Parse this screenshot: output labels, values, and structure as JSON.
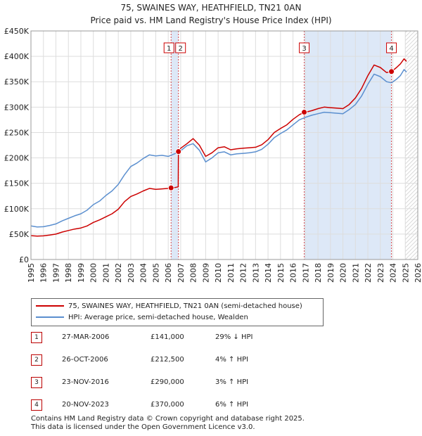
{
  "title": {
    "line1": "75, SWAINES WAY, HEATHFIELD, TN21 0AN",
    "line2": "Price paid vs. HM Land Registry's House Price Index (HPI)"
  },
  "legend": {
    "property": "75, SWAINES WAY, HEATHFIELD, TN21 0AN (semi-detached house)",
    "hpi": "HPI: Average price, semi-detached house, Wealden"
  },
  "colors": {
    "property": "#cc0000",
    "hpi": "#5b8fcf",
    "shade": "#dde8f7",
    "grid": "#dddddd",
    "marker_border": "#cc0000"
  },
  "sales": [
    {
      "num": "1",
      "date": "27-MAR-2006",
      "price": "£141,000",
      "hpi": "29% ↓ HPI"
    },
    {
      "num": "2",
      "date": "26-OCT-2006",
      "price": "£212,500",
      "hpi": "4% ↑ HPI"
    },
    {
      "num": "3",
      "date": "23-NOV-2016",
      "price": "£290,000",
      "hpi": "3% ↑ HPI"
    },
    {
      "num": "4",
      "date": "20-NOV-2023",
      "price": "£370,000",
      "hpi": "6% ↑ HPI"
    }
  ],
  "footer": {
    "line1": "Contains HM Land Registry data © Crown copyright and database right 2025.",
    "line2": "This data is licensed under the Open Government Licence v3.0."
  },
  "chart_data": {
    "type": "line",
    "title": "75, SWAINES WAY, HEATHFIELD, TN21 0AN — Price paid vs. HM Land Registry's House Price Index (HPI)",
    "xlabel": "",
    "ylabel": "",
    "xlim": [
      1995,
      2026
    ],
    "ylim": [
      0,
      450000
    ],
    "x_ticks": [
      "1995",
      "1996",
      "1997",
      "1998",
      "1999",
      "2000",
      "2001",
      "2002",
      "2003",
      "2004",
      "2005",
      "2006",
      "2007",
      "2008",
      "2009",
      "2010",
      "2011",
      "2012",
      "2013",
      "2014",
      "2015",
      "2016",
      "2017",
      "2018",
      "2019",
      "2020",
      "2021",
      "2022",
      "2023",
      "2024",
      "2025",
      "2026"
    ],
    "y_ticks": [
      {
        "value": 0,
        "label": "£0"
      },
      {
        "value": 50000,
        "label": "£50K"
      },
      {
        "value": 100000,
        "label": "£100K"
      },
      {
        "value": 150000,
        "label": "£150K"
      },
      {
        "value": 200000,
        "label": "£200K"
      },
      {
        "value": 250000,
        "label": "£250K"
      },
      {
        "value": 300000,
        "label": "£300K"
      },
      {
        "value": 350000,
        "label": "£350K"
      },
      {
        "value": 400000,
        "label": "£400K"
      },
      {
        "value": 450000,
        "label": "£450K"
      }
    ],
    "grid": true,
    "shaded_ranges": [
      [
        2006.23,
        2006.82
      ],
      [
        2016.9,
        2023.89
      ]
    ],
    "hatched_from": 2025.0,
    "series": [
      {
        "name": "HPI: Average price, semi-detached house, Wealden",
        "color": "#5b8fcf",
        "points": [
          [
            1995.0,
            66000
          ],
          [
            1995.5,
            64000
          ],
          [
            1996.0,
            64500
          ],
          [
            1996.5,
            67000
          ],
          [
            1997.0,
            70000
          ],
          [
            1997.5,
            76000
          ],
          [
            1998.0,
            81000
          ],
          [
            1998.5,
            86000
          ],
          [
            1999.0,
            90000
          ],
          [
            1999.5,
            97000
          ],
          [
            2000.0,
            108000
          ],
          [
            2000.5,
            115000
          ],
          [
            2001.0,
            126000
          ],
          [
            2001.5,
            135000
          ],
          [
            2002.0,
            148000
          ],
          [
            2002.5,
            167000
          ],
          [
            2003.0,
            183000
          ],
          [
            2003.5,
            190000
          ],
          [
            2004.0,
            199000
          ],
          [
            2004.5,
            206000
          ],
          [
            2005.0,
            204000
          ],
          [
            2005.5,
            205000
          ],
          [
            2006.0,
            203000
          ],
          [
            2006.5,
            208000
          ],
          [
            2007.0,
            214000
          ],
          [
            2007.5,
            224000
          ],
          [
            2008.0,
            228000
          ],
          [
            2008.5,
            215000
          ],
          [
            2009.0,
            192000
          ],
          [
            2009.5,
            200000
          ],
          [
            2010.0,
            210000
          ],
          [
            2010.5,
            212000
          ],
          [
            2011.0,
            206000
          ],
          [
            2011.5,
            208000
          ],
          [
            2012.0,
            209000
          ],
          [
            2012.5,
            210000
          ],
          [
            2013.0,
            212000
          ],
          [
            2013.5,
            217000
          ],
          [
            2014.0,
            227000
          ],
          [
            2014.5,
            240000
          ],
          [
            2015.0,
            248000
          ],
          [
            2015.5,
            255000
          ],
          [
            2016.0,
            265000
          ],
          [
            2016.5,
            275000
          ],
          [
            2017.0,
            280000
          ],
          [
            2017.5,
            284000
          ],
          [
            2018.0,
            287000
          ],
          [
            2018.5,
            290000
          ],
          [
            2019.0,
            289000
          ],
          [
            2019.5,
            288000
          ],
          [
            2020.0,
            287000
          ],
          [
            2020.5,
            295000
          ],
          [
            2021.0,
            305000
          ],
          [
            2021.5,
            322000
          ],
          [
            2022.0,
            345000
          ],
          [
            2022.5,
            365000
          ],
          [
            2023.0,
            360000
          ],
          [
            2023.5,
            350000
          ],
          [
            2023.9,
            348000
          ],
          [
            2024.3,
            355000
          ],
          [
            2024.6,
            362000
          ],
          [
            2024.9,
            374000
          ],
          [
            2025.1,
            369000
          ]
        ]
      },
      {
        "name": "75, SWAINES WAY, HEATHFIELD, TN21 0AN (semi-detached house)",
        "color": "#cc0000",
        "points": [
          [
            1995.0,
            47000
          ],
          [
            1995.5,
            46000
          ],
          [
            1996.0,
            46500
          ],
          [
            1996.5,
            48000
          ],
          [
            1997.0,
            50000
          ],
          [
            1997.5,
            54000
          ],
          [
            1998.0,
            57000
          ],
          [
            1998.5,
            60000
          ],
          [
            1999.0,
            62000
          ],
          [
            1999.5,
            66000
          ],
          [
            2000.0,
            73000
          ],
          [
            2000.5,
            78000
          ],
          [
            2001.0,
            84000
          ],
          [
            2001.5,
            90000
          ],
          [
            2002.0,
            99000
          ],
          [
            2002.5,
            114000
          ],
          [
            2003.0,
            124000
          ],
          [
            2003.5,
            129000
          ],
          [
            2004.0,
            135000
          ],
          [
            2004.5,
            140000
          ],
          [
            2005.0,
            138000
          ],
          [
            2005.5,
            139000
          ],
          [
            2006.0,
            140000
          ],
          [
            2006.23,
            141000
          ],
          [
            2006.5,
            141500
          ],
          [
            2006.8,
            143000
          ],
          [
            2006.82,
            212500
          ],
          [
            2007.0,
            219000
          ],
          [
            2007.5,
            228000
          ],
          [
            2008.0,
            238000
          ],
          [
            2008.5,
            225000
          ],
          [
            2009.0,
            203000
          ],
          [
            2009.5,
            210000
          ],
          [
            2010.0,
            220000
          ],
          [
            2010.5,
            222000
          ],
          [
            2011.0,
            216000
          ],
          [
            2011.5,
            218000
          ],
          [
            2012.0,
            219000
          ],
          [
            2012.5,
            220000
          ],
          [
            2013.0,
            221000
          ],
          [
            2013.5,
            226000
          ],
          [
            2014.0,
            236000
          ],
          [
            2014.5,
            250000
          ],
          [
            2015.0,
            258000
          ],
          [
            2015.5,
            265000
          ],
          [
            2016.0,
            276000
          ],
          [
            2016.5,
            285000
          ],
          [
            2016.9,
            290000
          ],
          [
            2017.0,
            290000
          ],
          [
            2017.5,
            293000
          ],
          [
            2018.0,
            297000
          ],
          [
            2018.5,
            300000
          ],
          [
            2019.0,
            299000
          ],
          [
            2019.5,
            298000
          ],
          [
            2020.0,
            297000
          ],
          [
            2020.5,
            305000
          ],
          [
            2021.0,
            318000
          ],
          [
            2021.5,
            337000
          ],
          [
            2022.0,
            362000
          ],
          [
            2022.5,
            383000
          ],
          [
            2023.0,
            378000
          ],
          [
            2023.5,
            368000
          ],
          [
            2023.89,
            370000
          ],
          [
            2024.3,
            378000
          ],
          [
            2024.6,
            385000
          ],
          [
            2024.9,
            395000
          ],
          [
            2025.1,
            390000
          ]
        ]
      }
    ],
    "sale_markers": [
      {
        "label": "1",
        "x": 2006.23,
        "y": 141000
      },
      {
        "label": "2",
        "x": 2006.82,
        "y": 212500
      },
      {
        "label": "3",
        "x": 2016.9,
        "y": 290000
      },
      {
        "label": "4",
        "x": 2023.89,
        "y": 370000
      }
    ]
  }
}
